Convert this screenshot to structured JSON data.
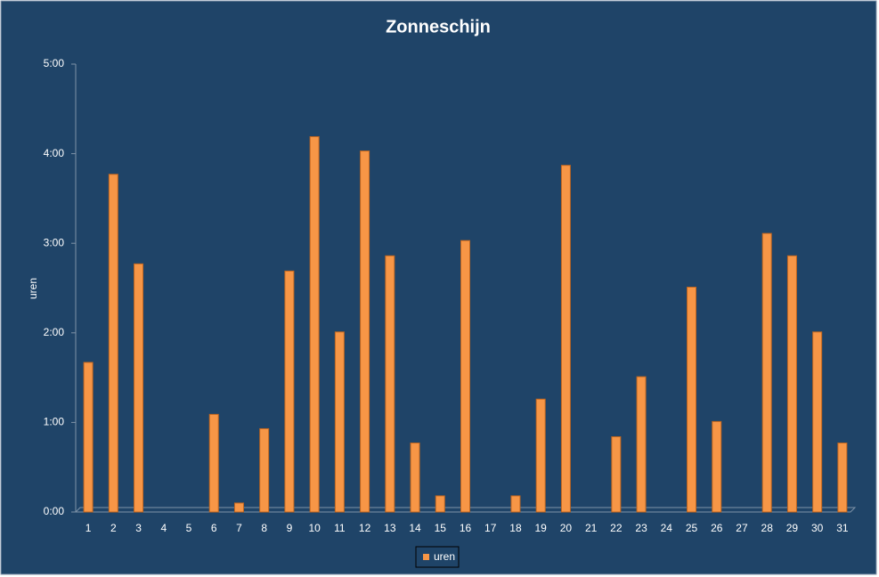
{
  "chart_data": {
    "type": "bar",
    "title": "Zonneschijn",
    "y_label": "uren",
    "categories": [
      "1",
      "2",
      "3",
      "4",
      "5",
      "6",
      "7",
      "8",
      "9",
      "10",
      "11",
      "12",
      "13",
      "14",
      "15",
      "16",
      "17",
      "18",
      "19",
      "20",
      "21",
      "22",
      "23",
      "24",
      "25",
      "26",
      "27",
      "28",
      "29",
      "30",
      "31"
    ],
    "series": [
      {
        "name": "uren",
        "color": "#f79646",
        "values": [
          1.67,
          3.77,
          2.77,
          0,
          0,
          1.09,
          0.1,
          0.93,
          2.69,
          4.19,
          2.01,
          4.03,
          2.86,
          0.77,
          0.18,
          3.03,
          0,
          0.18,
          1.26,
          3.87,
          0,
          0.84,
          1.51,
          0,
          2.51,
          1.01,
          0,
          3.11,
          2.86,
          2.01,
          0.77
        ]
      }
    ],
    "ylim": [
      0,
      5
    ],
    "yticks": [
      {
        "value": 0,
        "label": "0:00"
      },
      {
        "value": 1,
        "label": "1:00"
      },
      {
        "value": 2,
        "label": "2:00"
      },
      {
        "value": 3,
        "label": "3:00"
      },
      {
        "value": 4,
        "label": "4:00"
      },
      {
        "value": 5,
        "label": "5:00"
      }
    ],
    "grid": false,
    "legend": "bottom"
  }
}
